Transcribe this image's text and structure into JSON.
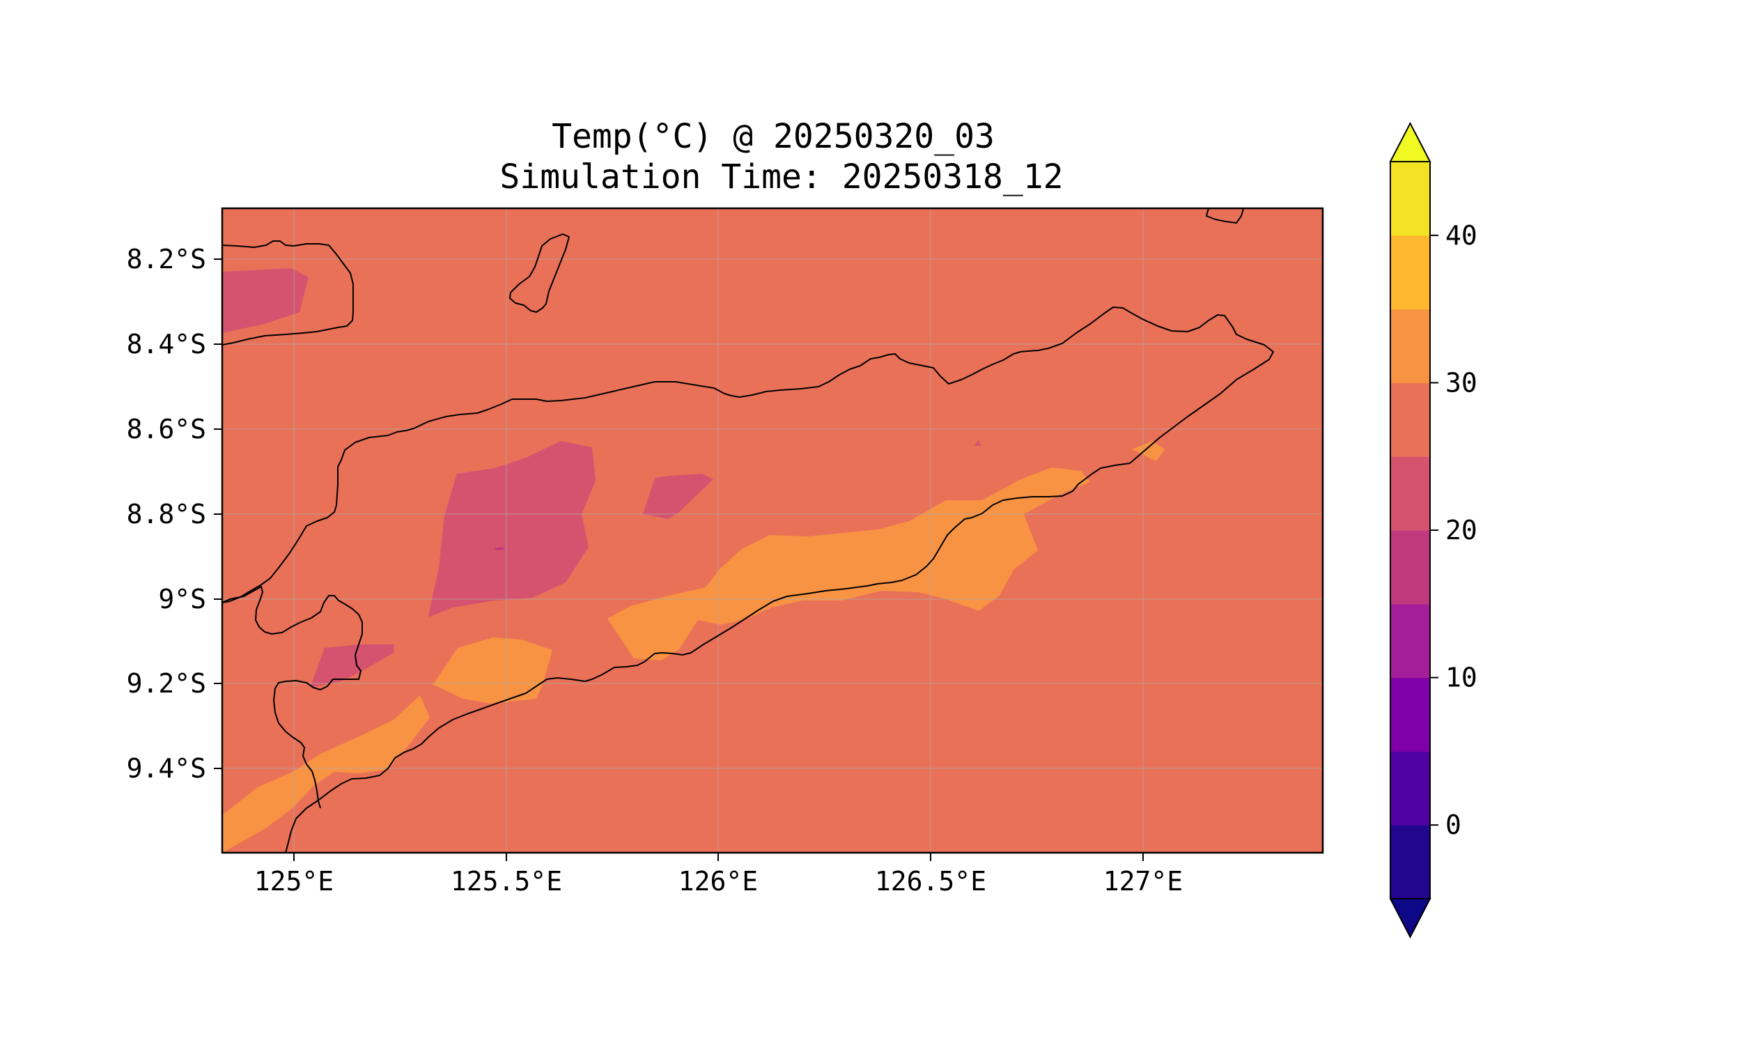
{
  "map": {
    "title_line1": "Temp(°C) @ 20250320_03",
    "title_line2": "Simulation Time: 20250318_12",
    "variable": "Temperature",
    "units": "°C",
    "lon_range": [
      124.83,
      127.42
    ],
    "lat_range": [
      -9.59,
      -8.07
    ],
    "background_band": [
      25,
      30
    ],
    "lon_ticks": [
      {
        "value": 125.0,
        "label": "125°E"
      },
      {
        "value": 125.5,
        "label": "125.5°E"
      },
      {
        "value": 126.0,
        "label": "126°E"
      },
      {
        "value": 126.5,
        "label": "126.5°E"
      },
      {
        "value": 127.0,
        "label": "127°E"
      }
    ],
    "lat_ticks": [
      {
        "value": -8.2,
        "label": "8.2°S"
      },
      {
        "value": -8.4,
        "label": "8.4°S"
      },
      {
        "value": -8.6,
        "label": "8.6°S"
      },
      {
        "value": -8.8,
        "label": "8.8°S"
      },
      {
        "value": -9.0,
        "label": "9°S"
      },
      {
        "value": -9.2,
        "label": "9.2°S"
      },
      {
        "value": -9.4,
        "label": "9.4°S"
      }
    ],
    "grid": true
  },
  "colorbar": {
    "min": -5,
    "max": 45,
    "extend": "both",
    "levels": [
      -5,
      0,
      5,
      10,
      15,
      20,
      25,
      30,
      35,
      40,
      45
    ],
    "colors": [
      "#220690",
      "#5102a3",
      "#7f00a8",
      "#a41e9a",
      "#c0397f",
      "#d5536f",
      "#e97158",
      "#f79342",
      "#feb72e",
      "#f3e324"
    ],
    "under_color": "#0d0887",
    "over_color": "#f0f921",
    "ticks": [
      {
        "value": 0,
        "label": "0"
      },
      {
        "value": 10,
        "label": "10"
      },
      {
        "value": 20,
        "label": "20"
      },
      {
        "value": 30,
        "label": "30"
      },
      {
        "value": 40,
        "label": "40"
      }
    ]
  }
}
